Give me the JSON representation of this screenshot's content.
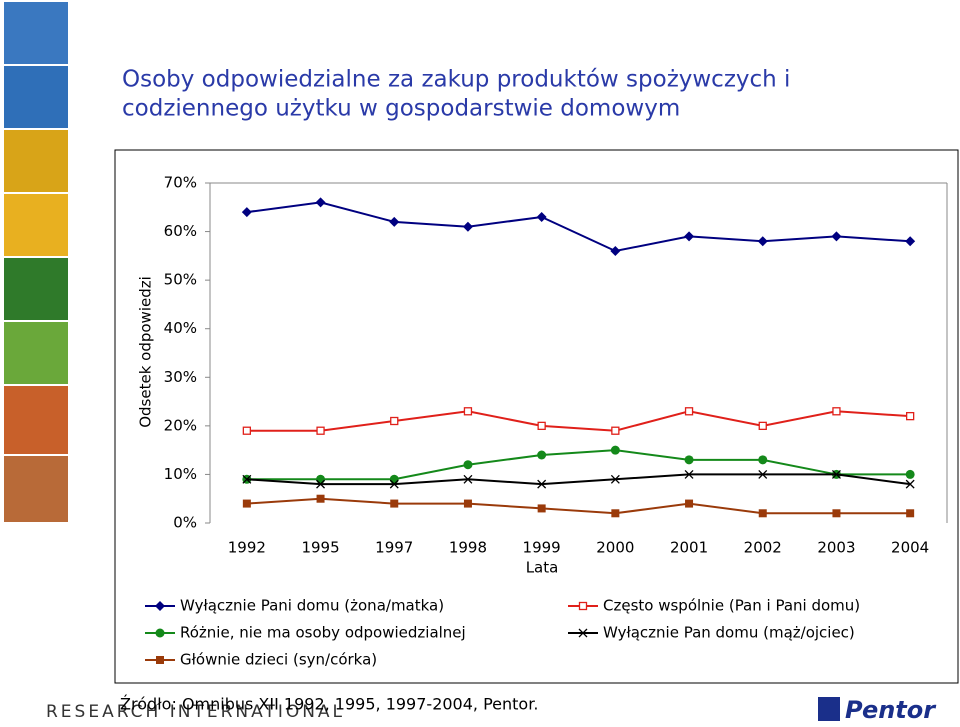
{
  "chart_data": {
    "type": "line",
    "title": [
      "Osoby odpowiedzialne za zakup produktów spożywczych i",
      "codziennego użytku w gospodarstwie domowym"
    ],
    "x_label": "Lata",
    "y_label": "Odsetek odpowiedzi",
    "categories": [
      "1992",
      "1995",
      "1997",
      "1998",
      "1999",
      "2000",
      "2001",
      "2002",
      "2003",
      "2004"
    ],
    "ylim": [
      0,
      70
    ],
    "yticks": [
      {
        "value": 0,
        "label": "0%"
      },
      {
        "value": 10,
        "label": "10%"
      },
      {
        "value": 20,
        "label": "20%"
      },
      {
        "value": 30,
        "label": "30%"
      },
      {
        "value": 40,
        "label": "40%"
      },
      {
        "value": 50,
        "label": "50%"
      },
      {
        "value": 60,
        "label": "60%"
      },
      {
        "value": 70,
        "label": "70%"
      }
    ],
    "grid": false,
    "series": [
      {
        "name": "Wyłącznie Pani domu (żona/matka)",
        "color": "#000080",
        "marker": "diamond",
        "values": [
          64,
          66,
          62,
          61,
          63,
          56,
          59,
          58,
          59,
          58
        ]
      },
      {
        "name": "Często wspólnie (Pan i Pani domu)",
        "color": "#e0201a",
        "marker": "open-square",
        "values": [
          19,
          19,
          21,
          23,
          20,
          19,
          23,
          20,
          23,
          22
        ]
      },
      {
        "name": "Różnie, nie ma osoby odpowiedzialnej",
        "color": "#14891a",
        "marker": "circle",
        "values": [
          9,
          9,
          9,
          12,
          14,
          15,
          13,
          13,
          10,
          10
        ]
      },
      {
        "name": "Wyłącznie Pan domu (mąż/ojciec)",
        "color": "#000000",
        "marker": "x",
        "values": [
          9,
          8,
          8,
          9,
          8,
          9,
          10,
          10,
          10,
          8
        ]
      },
      {
        "name": "Głównie dzieci (syn/córka)",
        "color": "#9a3a0a",
        "marker": "square",
        "values": [
          4,
          5,
          4,
          4,
          3,
          2,
          4,
          2,
          2,
          2
        ]
      }
    ]
  },
  "footer": {
    "source": "Źródło: Omnibus XII 1992, 1995, 1997-2004, Pentor.",
    "brand_left": "RESEARCH INTERNATIONAL",
    "brand_right": "Pentor"
  }
}
